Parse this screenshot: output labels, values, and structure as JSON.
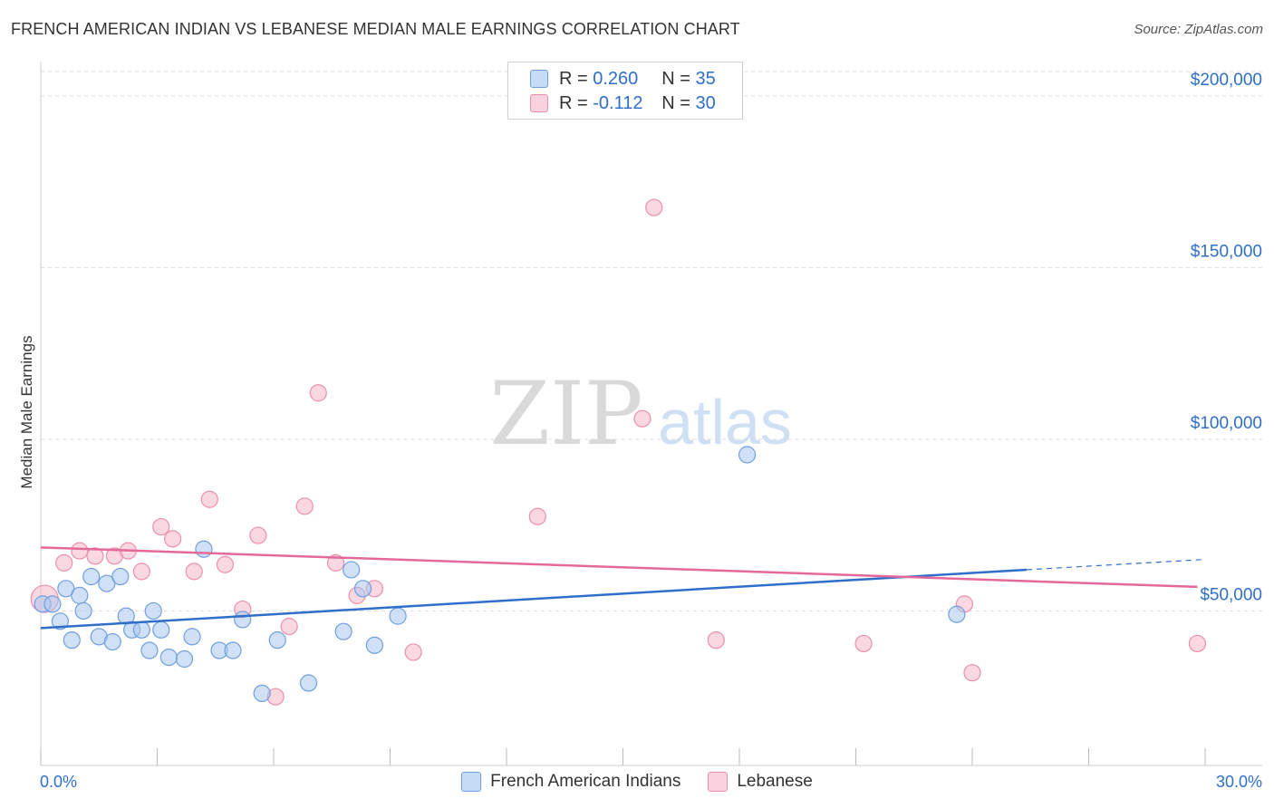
{
  "header": {
    "title": "FRENCH AMERICAN INDIAN VS LEBANESE MEDIAN MALE EARNINGS CORRELATION CHART",
    "source": "Source: ZipAtlas.com"
  },
  "watermark": {
    "zip": "ZIP",
    "atlas": "atlas"
  },
  "legend": {
    "rows": [
      {
        "r_label": "R = ",
        "r_value": "0.260",
        "n_label": "N = ",
        "n_value": "35",
        "color": "#a9c8f0"
      },
      {
        "r_label": "R = ",
        "r_value": "-0.112",
        "n_label": "N = ",
        "n_value": "30",
        "color": "#f6b8cb"
      }
    ]
  },
  "colors": {
    "blue_fill": "#a9c8f0",
    "blue_stroke": "#6f9fe0",
    "blue_line": "#2f6fc9",
    "pink_fill": "#f6b8cb",
    "pink_stroke": "#ec8fac",
    "pink_line": "#e4699a",
    "grid": "#dddddd",
    "axis_text": "#2f6fc9"
  },
  "chart_data": {
    "type": "scatter",
    "title": "FRENCH AMERICAN INDIAN VS LEBANESE MEDIAN MALE EARNINGS CORRELATION CHART",
    "xlabel": "",
    "ylabel": "Median Male Earnings",
    "xlim": [
      0,
      30
    ],
    "ylim": [
      5000,
      210000
    ],
    "x_tick_labels": [
      "0.0%",
      "30.0%"
    ],
    "y_ticks": [
      50000,
      100000,
      150000,
      200000
    ],
    "y_tick_labels": [
      "$50,000",
      "$100,000",
      "$150,000",
      "$200,000"
    ],
    "grid": true,
    "series": [
      {
        "name": "French American Indians",
        "r": 0.26,
        "n": 35,
        "trend": {
          "x_start": 0,
          "y_start": 45000,
          "x_solid_end": 25.4,
          "y_solid_end": 62000,
          "x_end": 30,
          "y_end": 65000
        },
        "points": [
          {
            "x": 0.05,
            "y": 52000
          },
          {
            "x": 0.3,
            "y": 52000
          },
          {
            "x": 0.5,
            "y": 47000
          },
          {
            "x": 0.65,
            "y": 56500
          },
          {
            "x": 0.8,
            "y": 41500
          },
          {
            "x": 1.0,
            "y": 54500
          },
          {
            "x": 1.1,
            "y": 50000
          },
          {
            "x": 1.3,
            "y": 60000
          },
          {
            "x": 1.5,
            "y": 42500
          },
          {
            "x": 1.7,
            "y": 58000
          },
          {
            "x": 1.85,
            "y": 41000
          },
          {
            "x": 2.05,
            "y": 60000
          },
          {
            "x": 2.2,
            "y": 48500
          },
          {
            "x": 2.35,
            "y": 44500
          },
          {
            "x": 2.6,
            "y": 44500
          },
          {
            "x": 2.8,
            "y": 38500
          },
          {
            "x": 2.9,
            "y": 50000
          },
          {
            "x": 3.1,
            "y": 44500
          },
          {
            "x": 3.3,
            "y": 36500
          },
          {
            "x": 3.7,
            "y": 36000
          },
          {
            "x": 3.9,
            "y": 42500
          },
          {
            "x": 4.2,
            "y": 68000
          },
          {
            "x": 4.6,
            "y": 38500
          },
          {
            "x": 4.95,
            "y": 38500
          },
          {
            "x": 5.2,
            "y": 47500
          },
          {
            "x": 5.7,
            "y": 26000
          },
          {
            "x": 6.1,
            "y": 41500
          },
          {
            "x": 6.9,
            "y": 29000
          },
          {
            "x": 7.8,
            "y": 44000
          },
          {
            "x": 8.0,
            "y": 62000
          },
          {
            "x": 8.3,
            "y": 56500
          },
          {
            "x": 8.6,
            "y": 40000
          },
          {
            "x": 9.2,
            "y": 48500
          },
          {
            "x": 18.2,
            "y": 95500
          },
          {
            "x": 23.6,
            "y": 49000
          }
        ]
      },
      {
        "name": "Lebanese",
        "r": -0.112,
        "n": 30,
        "trend": {
          "x_start": 0,
          "y_start": 68500,
          "x_end": 29.8,
          "y_end": 57000
        },
        "points": [
          {
            "x": 0.1,
            "y": 53500
          },
          {
            "x": 0.6,
            "y": 64000
          },
          {
            "x": 1.0,
            "y": 67500
          },
          {
            "x": 1.4,
            "y": 66000
          },
          {
            "x": 1.9,
            "y": 66000
          },
          {
            "x": 2.25,
            "y": 67500
          },
          {
            "x": 2.6,
            "y": 61500
          },
          {
            "x": 3.1,
            "y": 74500
          },
          {
            "x": 3.4,
            "y": 71000
          },
          {
            "x": 3.95,
            "y": 61500
          },
          {
            "x": 4.35,
            "y": 82500
          },
          {
            "x": 4.75,
            "y": 63500
          },
          {
            "x": 5.2,
            "y": 50500
          },
          {
            "x": 5.6,
            "y": 72000
          },
          {
            "x": 6.05,
            "y": 25000
          },
          {
            "x": 6.4,
            "y": 45500
          },
          {
            "x": 6.8,
            "y": 80500
          },
          {
            "x": 7.15,
            "y": 113500
          },
          {
            "x": 7.6,
            "y": 64000
          },
          {
            "x": 8.15,
            "y": 54500
          },
          {
            "x": 8.6,
            "y": 56500
          },
          {
            "x": 9.6,
            "y": 38000
          },
          {
            "x": 12.8,
            "y": 77500
          },
          {
            "x": 15.5,
            "y": 106000
          },
          {
            "x": 15.8,
            "y": 167500
          },
          {
            "x": 17.4,
            "y": 41500
          },
          {
            "x": 21.2,
            "y": 40500
          },
          {
            "x": 23.8,
            "y": 52000
          },
          {
            "x": 24.0,
            "y": 32000
          },
          {
            "x": 29.8,
            "y": 40500
          }
        ]
      }
    ]
  }
}
